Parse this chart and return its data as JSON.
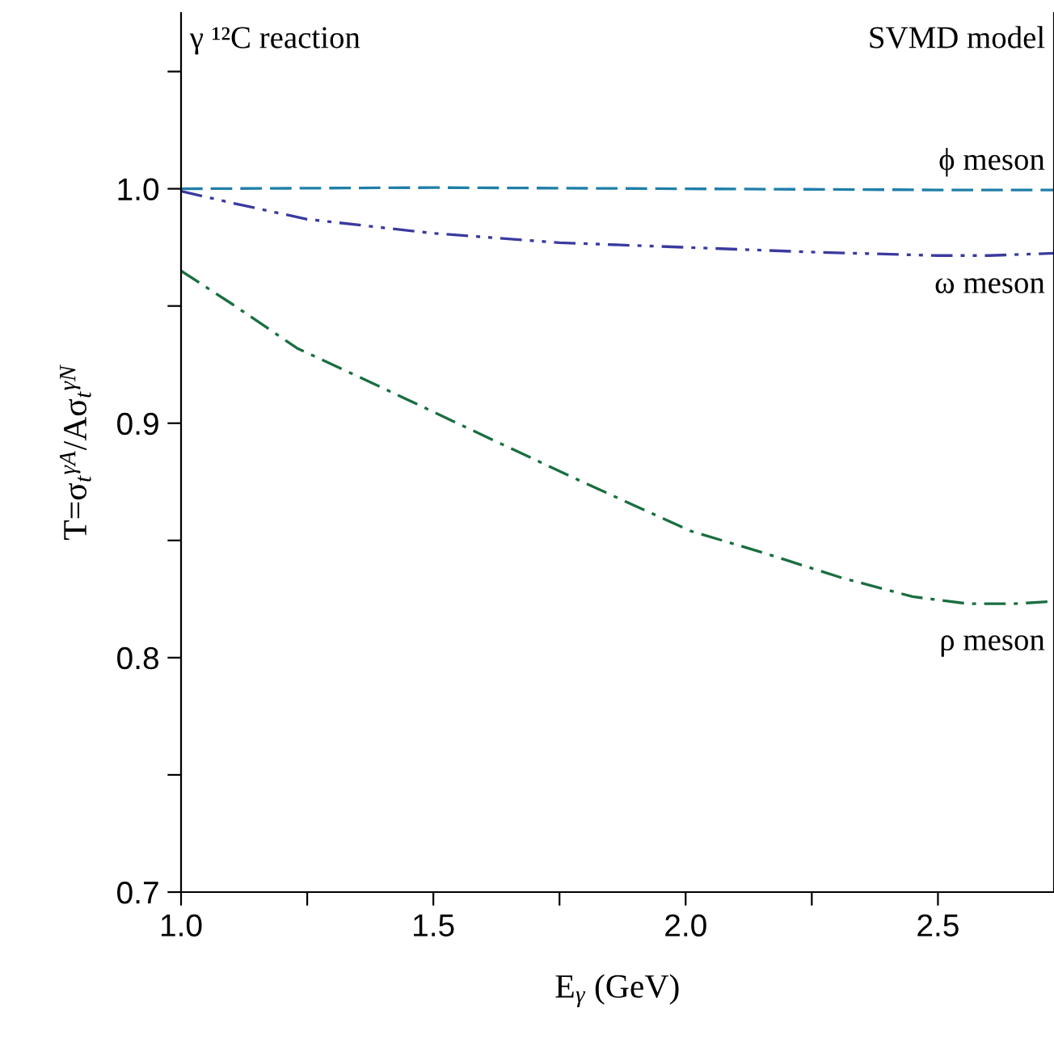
{
  "chart_data": {
    "type": "line",
    "xlabel": "E$_{γ}$ (GeV)",
    "ylabel": "T=σ$_{t}$$^{γA}$/Aσ$_{t}$$^{γN}$",
    "annotations": [
      "γ ¹²C reaction",
      "SVMD model"
    ],
    "xlim": [
      1.0,
      2.73
    ],
    "xticks": [
      {
        "value": 1,
        "label": "1.0"
      },
      {
        "value": 1.25,
        "label": null
      },
      1.5,
      {
        "value": 1.75,
        "label": null
      },
      {
        "value": 2,
        "label": "2.0"
      },
      {
        "value": 2.25,
        "label": null
      },
      2.5
    ],
    "ylim": [
      0.7,
      1.075
    ],
    "yticks": [
      0.7,
      {
        "value": 0.75,
        "label": null
      },
      0.8,
      {
        "value": 0.85,
        "label": null
      },
      0.9,
      {
        "value": 0.95,
        "label": null
      },
      {
        "value": 1,
        "label": "1.0"
      },
      {
        "value": 1.05,
        "label": null
      }
    ],
    "grid": false,
    "legend": false,
    "marker": "none",
    "series": [
      {
        "name": "ϕ meson",
        "color": "#1f7fa8",
        "line_style": "dashed",
        "x": [
          1.0,
          1.5,
          2.0,
          2.5,
          2.73
        ],
        "values": [
          1.0,
          1.0005,
          1.0,
          0.9995,
          0.9995
        ]
      },
      {
        "name": "ω meson",
        "color": "#3a3aa0",
        "line_style": "dashdotdot",
        "x": [
          1.0,
          1.1,
          1.25,
          1.5,
          1.75,
          2.0,
          2.25,
          2.5,
          2.6,
          2.73
        ],
        "values": [
          0.999,
          0.994,
          0.987,
          0.981,
          0.977,
          0.975,
          0.973,
          0.9715,
          0.9715,
          0.9725
        ]
      },
      {
        "name": "ρ meson",
        "color": "#1a6e40",
        "line_style": "dashdot",
        "x": [
          1.0,
          1.1,
          1.23,
          1.4,
          1.577,
          1.785,
          2.01,
          2.15,
          2.31,
          2.45,
          2.56,
          2.65,
          2.73
        ],
        "values": [
          0.965,
          0.951,
          0.932,
          0.915,
          0.897,
          0.876,
          0.854,
          0.845,
          0.834,
          0.826,
          0.823,
          0.823,
          0.824
        ]
      }
    ]
  }
}
